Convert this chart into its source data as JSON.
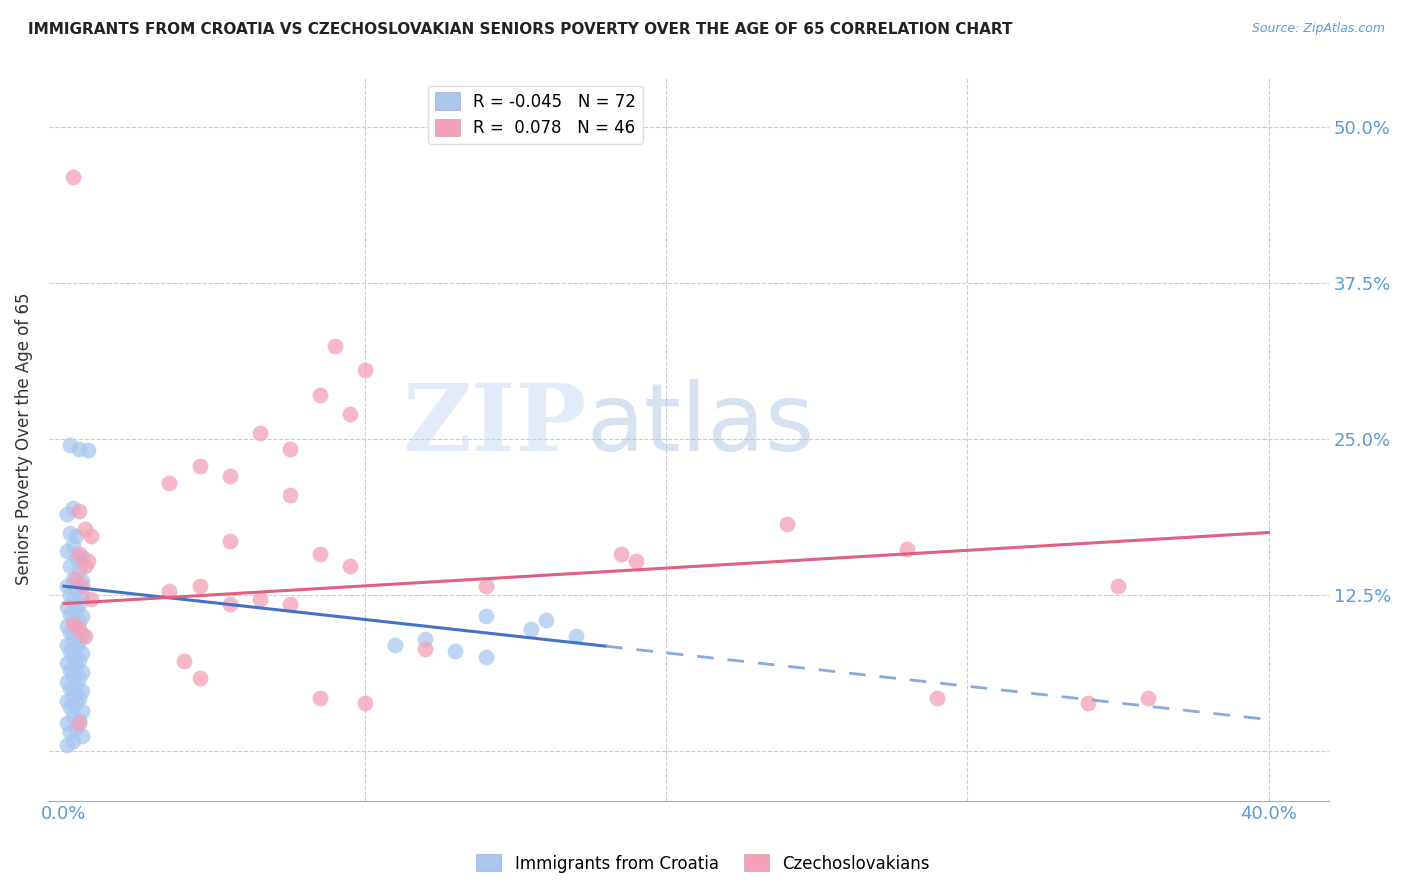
{
  "title": "IMMIGRANTS FROM CROATIA VS CZECHOSLOVAKIAN SENIORS POVERTY OVER THE AGE OF 65 CORRELATION CHART",
  "source": "Source: ZipAtlas.com",
  "ylabel": "Seniors Poverty Over the Age of 65",
  "xlim": [
    0.0,
    0.4
  ],
  "ylim": [
    -0.04,
    0.54
  ],
  "yticks": [
    0.0,
    0.125,
    0.25,
    0.375,
    0.5
  ],
  "ytick_labels_right": [
    "",
    "12.5%",
    "25.0%",
    "37.5%",
    "50.0%"
  ],
  "xticks": [
    0.0,
    0.1,
    0.2,
    0.3,
    0.4
  ],
  "xtick_labels": [
    "0.0%",
    "",
    "",
    "",
    "40.0%"
  ],
  "watermark": "ZIPatlas",
  "croatia_color": "#a8c8f0",
  "czech_color": "#f4a0b8",
  "title_color": "#222222",
  "axis_color": "#5b9bd5",
  "grid_color": "#cccccc",
  "trend_croatia_solid_color": "#4472c4",
  "trend_croatia_dash_color": "#88aadd",
  "trend_czech_color": "#e06080",
  "background_color": "#ffffff",
  "trend_croatia_x0": 0.0,
  "trend_croatia_y0": 0.132,
  "trend_croatia_x1": 0.4,
  "trend_croatia_y1": 0.025,
  "trend_croatia_solid_end_x": 0.18,
  "trend_czech_x0": 0.0,
  "trend_czech_y0": 0.118,
  "trend_czech_x1": 0.4,
  "trend_czech_y1": 0.175,
  "croatia_points": [
    [
      0.002,
      0.245
    ],
    [
      0.005,
      0.242
    ],
    [
      0.008,
      0.241
    ],
    [
      0.003,
      0.195
    ],
    [
      0.001,
      0.19
    ],
    [
      0.002,
      0.175
    ],
    [
      0.004,
      0.172
    ],
    [
      0.003,
      0.165
    ],
    [
      0.001,
      0.16
    ],
    [
      0.004,
      0.155
    ],
    [
      0.006,
      0.155
    ],
    [
      0.002,
      0.148
    ],
    [
      0.005,
      0.145
    ],
    [
      0.003,
      0.138
    ],
    [
      0.006,
      0.136
    ],
    [
      0.001,
      0.132
    ],
    [
      0.004,
      0.13
    ],
    [
      0.002,
      0.125
    ],
    [
      0.006,
      0.124
    ],
    [
      0.003,
      0.12
    ],
    [
      0.005,
      0.118
    ],
    [
      0.001,
      0.115
    ],
    [
      0.004,
      0.114
    ],
    [
      0.002,
      0.11
    ],
    [
      0.006,
      0.108
    ],
    [
      0.003,
      0.105
    ],
    [
      0.005,
      0.103
    ],
    [
      0.001,
      0.1
    ],
    [
      0.004,
      0.098
    ],
    [
      0.002,
      0.095
    ],
    [
      0.006,
      0.093
    ],
    [
      0.003,
      0.09
    ],
    [
      0.005,
      0.088
    ],
    [
      0.001,
      0.085
    ],
    [
      0.004,
      0.083
    ],
    [
      0.002,
      0.08
    ],
    [
      0.006,
      0.078
    ],
    [
      0.003,
      0.075
    ],
    [
      0.005,
      0.073
    ],
    [
      0.001,
      0.07
    ],
    [
      0.004,
      0.068
    ],
    [
      0.002,
      0.065
    ],
    [
      0.006,
      0.063
    ],
    [
      0.003,
      0.06
    ],
    [
      0.005,
      0.058
    ],
    [
      0.001,
      0.055
    ],
    [
      0.004,
      0.052
    ],
    [
      0.002,
      0.05
    ],
    [
      0.006,
      0.048
    ],
    [
      0.003,
      0.045
    ],
    [
      0.005,
      0.042
    ],
    [
      0.001,
      0.04
    ],
    [
      0.004,
      0.038
    ],
    [
      0.002,
      0.035
    ],
    [
      0.006,
      0.032
    ],
    [
      0.003,
      0.028
    ],
    [
      0.005,
      0.025
    ],
    [
      0.001,
      0.022
    ],
    [
      0.004,
      0.018
    ],
    [
      0.002,
      0.015
    ],
    [
      0.006,
      0.012
    ],
    [
      0.003,
      0.008
    ],
    [
      0.001,
      0.005
    ],
    [
      0.14,
      0.108
    ],
    [
      0.16,
      0.105
    ],
    [
      0.155,
      0.098
    ],
    [
      0.17,
      0.092
    ],
    [
      0.12,
      0.09
    ],
    [
      0.11,
      0.085
    ],
    [
      0.13,
      0.08
    ],
    [
      0.14,
      0.075
    ]
  ],
  "czech_points": [
    [
      0.003,
      0.46
    ],
    [
      0.09,
      0.325
    ],
    [
      0.1,
      0.305
    ],
    [
      0.085,
      0.285
    ],
    [
      0.095,
      0.27
    ],
    [
      0.065,
      0.255
    ],
    [
      0.075,
      0.242
    ],
    [
      0.045,
      0.228
    ],
    [
      0.055,
      0.22
    ],
    [
      0.035,
      0.215
    ],
    [
      0.075,
      0.205
    ],
    [
      0.005,
      0.192
    ],
    [
      0.007,
      0.178
    ],
    [
      0.009,
      0.172
    ],
    [
      0.055,
      0.168
    ],
    [
      0.005,
      0.158
    ],
    [
      0.008,
      0.152
    ],
    [
      0.007,
      0.148
    ],
    [
      0.085,
      0.158
    ],
    [
      0.095,
      0.148
    ],
    [
      0.004,
      0.138
    ],
    [
      0.006,
      0.132
    ],
    [
      0.009,
      0.122
    ],
    [
      0.045,
      0.132
    ],
    [
      0.035,
      0.128
    ],
    [
      0.065,
      0.122
    ],
    [
      0.055,
      0.118
    ],
    [
      0.075,
      0.118
    ],
    [
      0.003,
      0.102
    ],
    [
      0.005,
      0.098
    ],
    [
      0.007,
      0.092
    ],
    [
      0.04,
      0.072
    ],
    [
      0.045,
      0.058
    ],
    [
      0.12,
      0.082
    ],
    [
      0.14,
      0.132
    ],
    [
      0.19,
      0.152
    ],
    [
      0.35,
      0.132
    ],
    [
      0.36,
      0.042
    ],
    [
      0.24,
      0.182
    ],
    [
      0.28,
      0.162
    ],
    [
      0.085,
      0.042
    ],
    [
      0.1,
      0.038
    ],
    [
      0.005,
      0.022
    ],
    [
      0.29,
      0.042
    ],
    [
      0.34,
      0.038
    ],
    [
      0.185,
      0.158
    ]
  ]
}
